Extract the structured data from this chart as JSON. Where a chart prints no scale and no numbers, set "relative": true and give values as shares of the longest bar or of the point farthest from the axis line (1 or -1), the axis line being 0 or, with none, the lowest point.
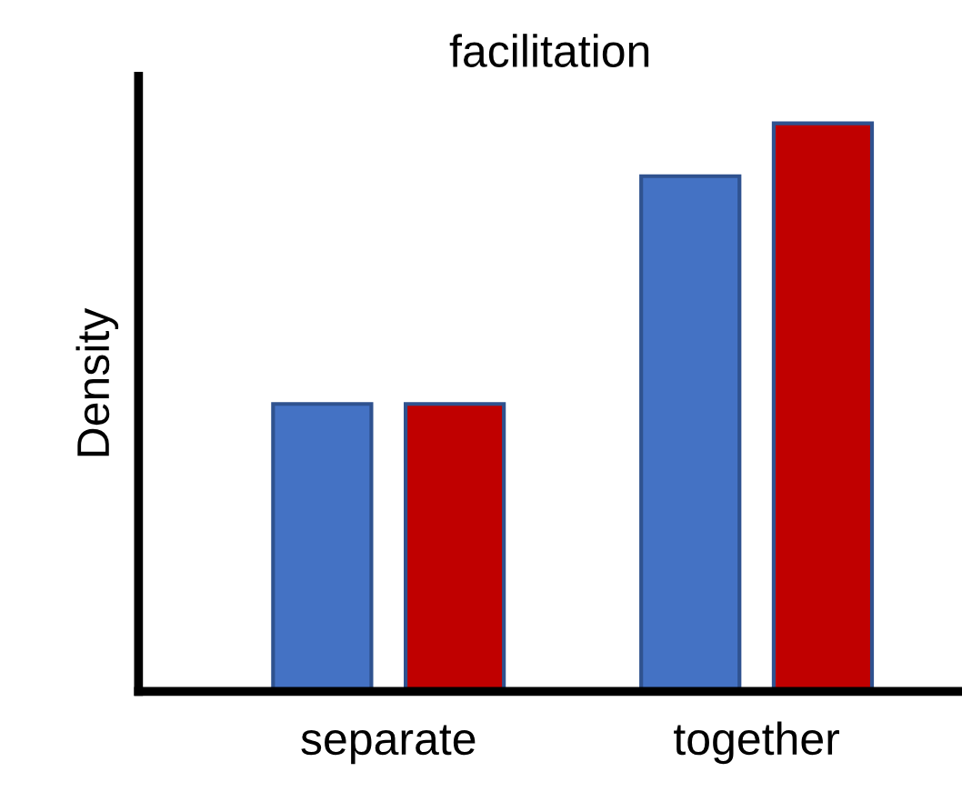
{
  "chart_data": {
    "type": "bar",
    "title": "facilitation",
    "ylabel": "Density",
    "relative": true,
    "categories": [
      "separate",
      "together"
    ],
    "series": [
      {
        "color": "#4472c4",
        "values": [
          0.506,
          0.907
        ]
      },
      {
        "color": "#c00000",
        "values": [
          0.506,
          1
        ]
      }
    ],
    "grid": false
  }
}
